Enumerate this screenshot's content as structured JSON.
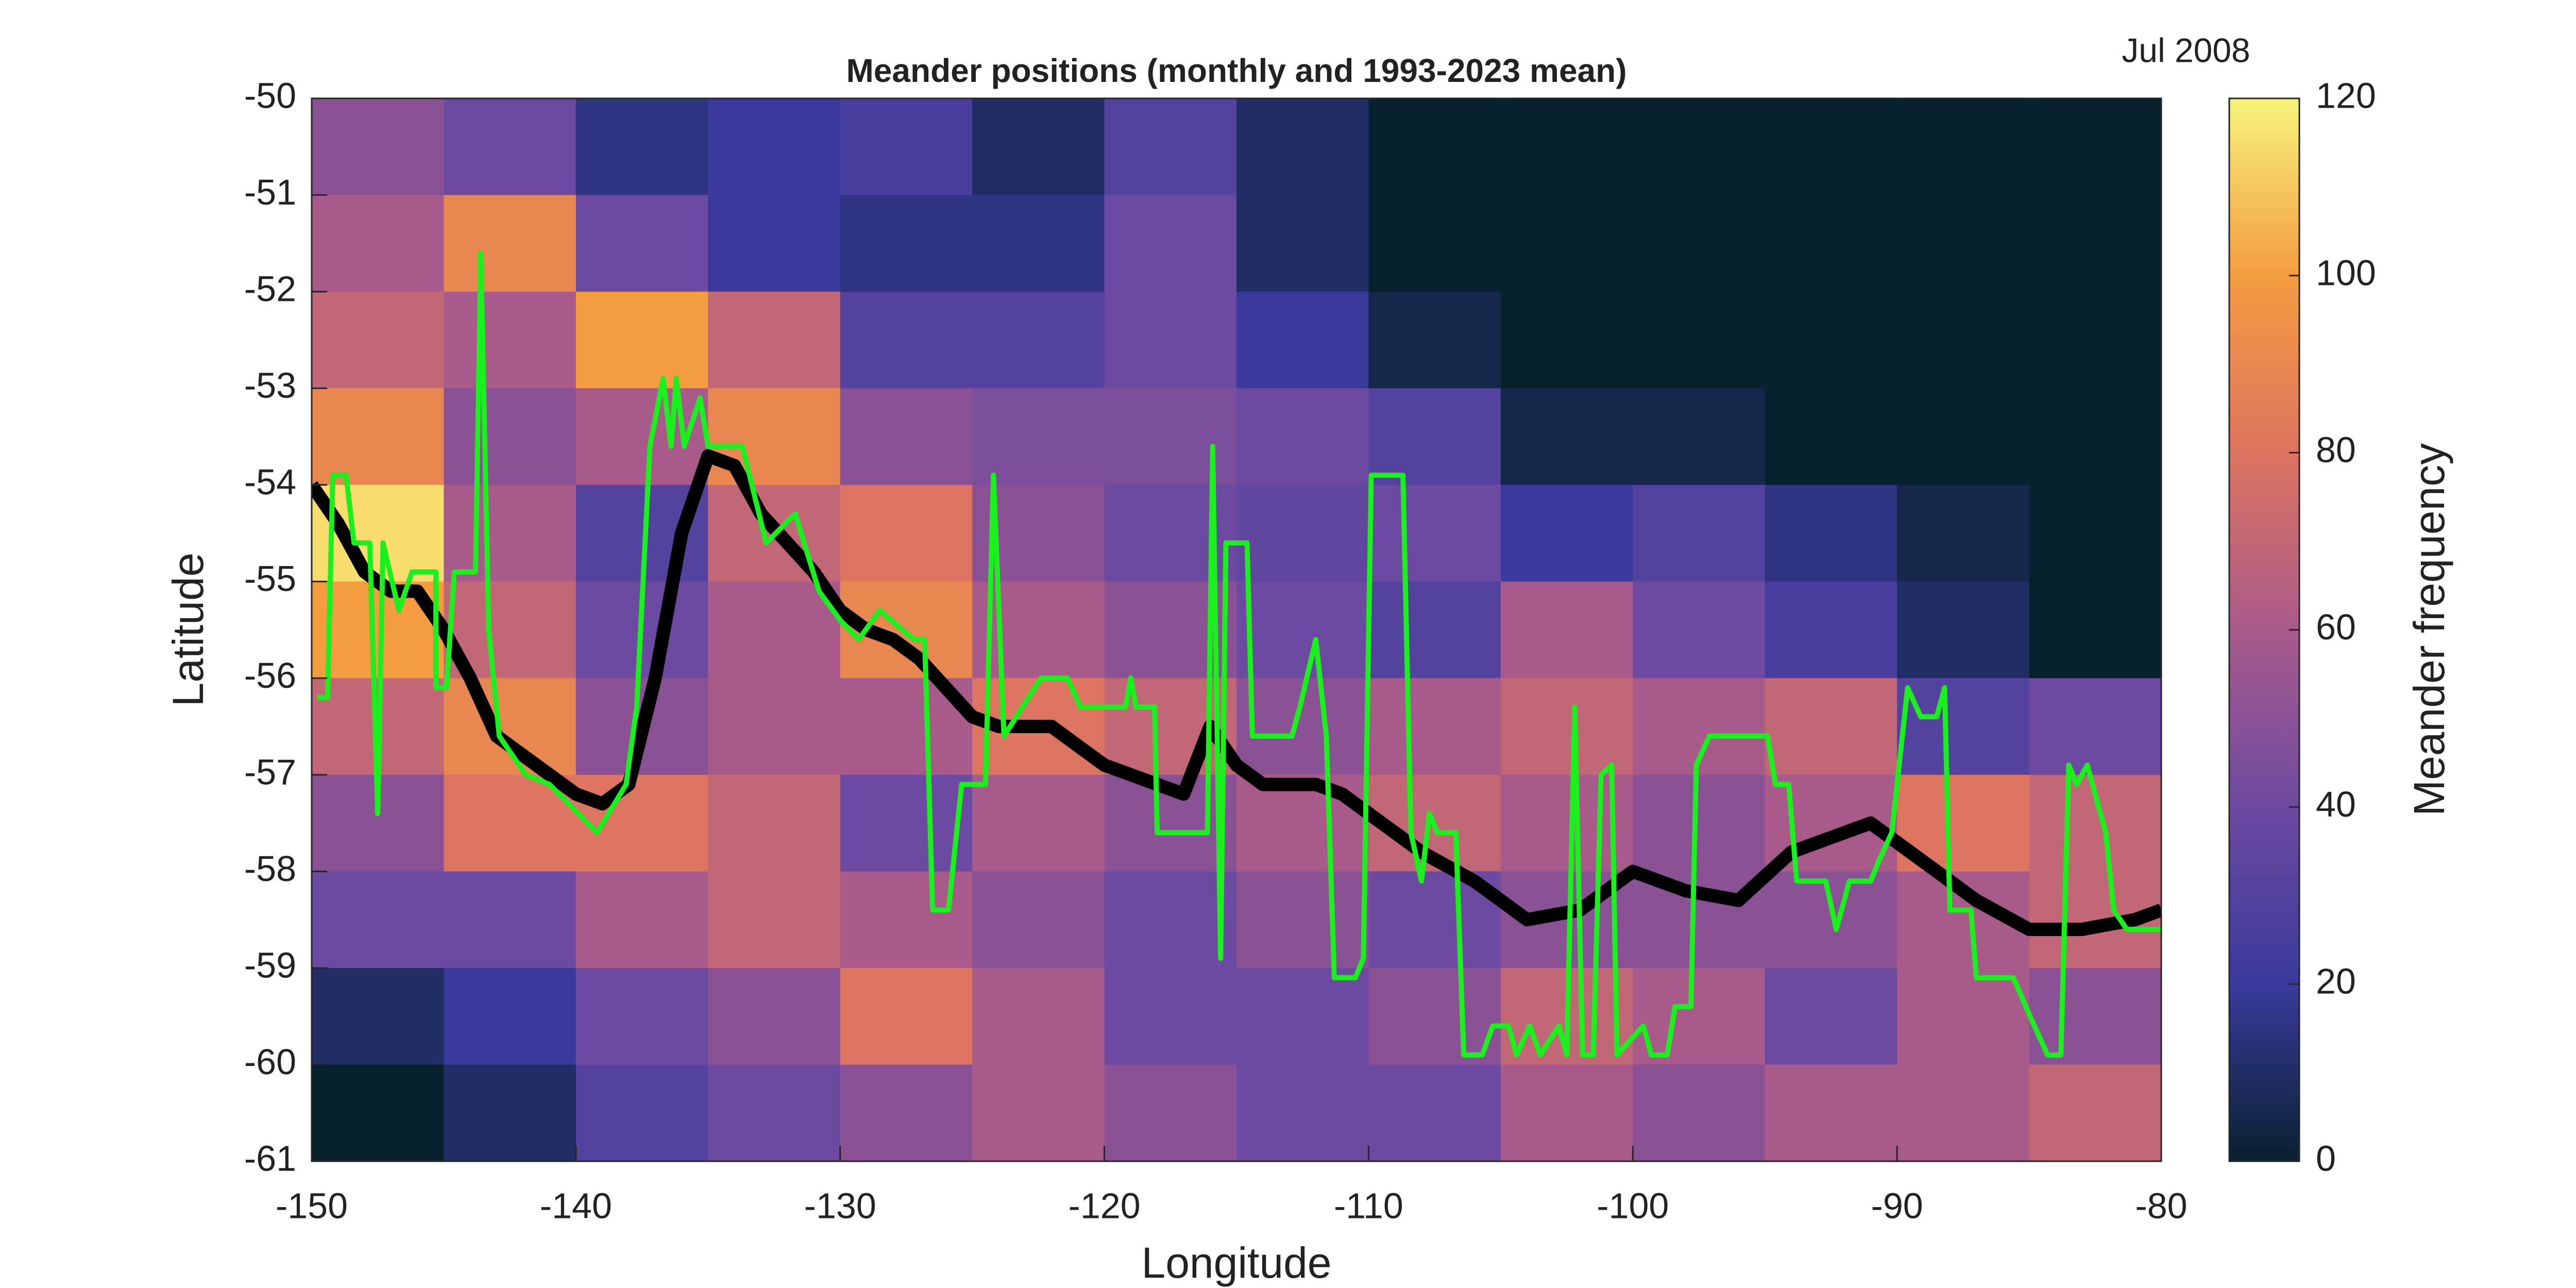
{
  "chart_data": {
    "type": "heatmap",
    "title": "Meander positions (monthly and 1993-2023 mean)",
    "annotation": "Jul 2008",
    "xlabel": "Longitude",
    "ylabel": "Latitude",
    "xlim": [
      -150,
      -80
    ],
    "ylim": [
      -61,
      -50
    ],
    "xticks": [
      -150,
      -140,
      -130,
      -120,
      -110,
      -100,
      -90,
      -80
    ],
    "yticks": [
      -50,
      -51,
      -52,
      -53,
      -54,
      -55,
      -56,
      -57,
      -58,
      -59,
      -60,
      -61
    ],
    "x_edges": [
      -150,
      -145,
      -140,
      -135,
      -130,
      -125,
      -120,
      -115,
      -110,
      -105,
      -100,
      -95,
      -90,
      -85,
      -80
    ],
    "y_edges": [
      -50,
      -51,
      -52,
      -53,
      -54,
      -55,
      -56,
      -57,
      -58,
      -59,
      -60,
      -61
    ],
    "z": [
      [
        50,
        40,
        15,
        20,
        25,
        10,
        30,
        10,
        0,
        0,
        0,
        0,
        0,
        0
      ],
      [
        60,
        90,
        40,
        20,
        15,
        15,
        40,
        10,
        0,
        0,
        0,
        0,
        0,
        0
      ],
      [
        70,
        60,
        100,
        70,
        30,
        30,
        40,
        20,
        5,
        0,
        0,
        0,
        0,
        0
      ],
      [
        90,
        50,
        60,
        90,
        50,
        45,
        45,
        40,
        30,
        5,
        5,
        0,
        0,
        0
      ],
      [
        115,
        60,
        30,
        70,
        80,
        50,
        40,
        35,
        40,
        20,
        30,
        15,
        5,
        0
      ],
      [
        100,
        70,
        40,
        60,
        90,
        60,
        50,
        40,
        30,
        60,
        40,
        25,
        10,
        0
      ],
      [
        70,
        90,
        50,
        60,
        60,
        80,
        70,
        50,
        60,
        70,
        60,
        70,
        30,
        40
      ],
      [
        50,
        80,
        80,
        70,
        40,
        60,
        50,
        60,
        70,
        60,
        50,
        60,
        80,
        70
      ],
      [
        40,
        40,
        60,
        70,
        60,
        50,
        40,
        50,
        40,
        50,
        50,
        50,
        60,
        70
      ],
      [
        10,
        20,
        40,
        50,
        80,
        60,
        40,
        40,
        50,
        70,
        60,
        40,
        60,
        50
      ],
      [
        0,
        10,
        30,
        40,
        50,
        60,
        50,
        40,
        40,
        60,
        50,
        60,
        60,
        70
      ]
    ],
    "colormap": [
      "#08212f",
      "#3a3a9c",
      "#6c4aa0",
      "#a85a8a",
      "#dc7460",
      "#f49c40",
      "#f6f37c"
    ],
    "colorbar": {
      "label": "Meander frequency",
      "lim": [
        0,
        120
      ],
      "ticks": [
        0,
        20,
        40,
        60,
        80,
        100,
        120
      ]
    },
    "lines": [
      {
        "color": "#000000",
        "x": [
          -150,
          -149,
          -148,
          -147,
          -146,
          -145,
          -144,
          -143,
          -142,
          -141,
          -140,
          -139,
          -138,
          -137,
          -136,
          -135,
          -134,
          -133,
          -132,
          -131,
          -130,
          -129,
          -128,
          -127,
          -126,
          -125,
          -124,
          -123,
          -122,
          -121,
          -120,
          -119,
          -118,
          -117,
          -116,
          -115,
          -114,
          -113,
          -112,
          -111,
          -110,
          -108,
          -106,
          -104,
          -102,
          -100,
          -98,
          -96,
          -94,
          -92,
          -91,
          -89,
          -87,
          -85,
          -83,
          -81,
          -80
        ],
        "values": [
          -54,
          -54.4,
          -54.9,
          -55.1,
          -55.1,
          -55.5,
          -56.0,
          -56.6,
          -56.8,
          -57.0,
          -57.2,
          -57.3,
          -57.1,
          -56.0,
          -54.5,
          -53.7,
          -53.8,
          -54.3,
          -54.6,
          -54.9,
          -55.3,
          -55.5,
          -55.6,
          -55.8,
          -56.1,
          -56.4,
          -56.5,
          -56.5,
          -56.5,
          -56.7,
          -56.9,
          -57.0,
          -57.1,
          -57.2,
          -56.5,
          -56.9,
          -57.1,
          -57.1,
          -57.1,
          -57.2,
          -57.4,
          -57.8,
          -58.1,
          -58.5,
          -58.4,
          -58.0,
          -58.2,
          -58.3,
          -57.8,
          -57.6,
          -57.5,
          -57.9,
          -58.3,
          -58.6,
          -58.6,
          -58.5,
          -58.4
        ]
      },
      {
        "color": "#19f01e",
        "x": [
          -149.8,
          -149.4,
          -149.2,
          -148.7,
          -148.4,
          -147.8,
          -147.5,
          -147.3,
          -146.7,
          -146.2,
          -145.3,
          -145.3,
          -144.9,
          -144.6,
          -143.8,
          -143.6,
          -143.3,
          -142.9,
          -141.9,
          -141,
          -139.2,
          -138.1,
          -137.7,
          -137.2,
          -136.7,
          -136.4,
          -136.2,
          -135.9,
          -135.3,
          -135,
          -133.7,
          -132.8,
          -131.7,
          -130.8,
          -130,
          -129.3,
          -128.5,
          -127.2,
          -126.8,
          -126.5,
          -125.9,
          -125.4,
          -124.5,
          -124.2,
          -123.8,
          -123.1,
          -122.4,
          -121.4,
          -120.9,
          -119.2,
          -119,
          -118.8,
          -118.1,
          -118,
          -116.1,
          -115.9,
          -115.6,
          -115.4,
          -114.6,
          -114.4,
          -112.9,
          -112.6,
          -112,
          -111.6,
          -111.3,
          -110.5,
          -110.2,
          -109.9,
          -108.7,
          -108.4,
          -108,
          -107.7,
          -107.4,
          -106.7,
          -106.4,
          -105.7,
          -105.3,
          -104.7,
          -104.4,
          -103.9,
          -103.5,
          -102.8,
          -102.5,
          -102.2,
          -101.9,
          -101.5,
          -101.2,
          -100.8,
          -100.6,
          -99.6,
          -99.3,
          -98.7,
          -98.4,
          -97.8,
          -97.6,
          -97.1,
          -94.9,
          -94.6,
          -94.1,
          -93.8,
          -92.7,
          -92.3,
          -91.8,
          -91,
          -90.7,
          -90.2,
          -89.6,
          -89.1,
          -88.5,
          -88.2,
          -88,
          -87.2,
          -87,
          -85.6,
          -84.8,
          -84.3,
          -83.8,
          -83.5,
          -83.2,
          -82.8,
          -82.1,
          -81.8,
          -81.3,
          -80
        ],
        "values": [
          -56.2,
          -56.2,
          -53.9,
          -53.9,
          -54.6,
          -54.6,
          -57.4,
          -54.6,
          -55.3,
          -54.9,
          -54.9,
          -56.1,
          -56.1,
          -54.9,
          -54.9,
          -51.6,
          -55.5,
          -56.6,
          -57.0,
          -57.1,
          -57.6,
          -57.1,
          -56.3,
          -53.6,
          -52.9,
          -53.6,
          -52.9,
          -53.6,
          -53.1,
          -53.6,
          -53.6,
          -54.6,
          -54.3,
          -55.1,
          -55.4,
          -55.6,
          -55.3,
          -55.6,
          -55.6,
          -58.4,
          -58.4,
          -57.1,
          -57.1,
          -53.9,
          -56.6,
          -56.3,
          -56.0,
          -56.0,
          -56.3,
          -56.3,
          -56.0,
          -56.3,
          -56.3,
          -57.6,
          -57.6,
          -53.6,
          -58.9,
          -54.6,
          -54.6,
          -56.6,
          -56.6,
          -56.3,
          -55.6,
          -56.6,
          -59.1,
          -59.1,
          -58.9,
          -53.9,
          -53.9,
          -57.6,
          -58.1,
          -57.4,
          -57.6,
          -57.6,
          -59.9,
          -59.9,
          -59.6,
          -59.6,
          -59.9,
          -59.6,
          -59.9,
          -59.6,
          -59.9,
          -56.3,
          -59.9,
          -59.9,
          -57.0,
          -56.9,
          -59.9,
          -59.6,
          -59.9,
          -59.9,
          -59.4,
          -59.4,
          -56.9,
          -56.6,
          -56.6,
          -57.1,
          -57.1,
          -58.1,
          -58.1,
          -58.6,
          -58.1,
          -58.1,
          -57.9,
          -57.6,
          -56.1,
          -56.4,
          -56.4,
          -56.1,
          -58.4,
          -58.4,
          -59.1,
          -59.1,
          -59.6,
          -59.9,
          -59.9,
          -56.9,
          -57.1,
          -56.9,
          -57.6,
          -58.4,
          -58.6,
          -58.6
        ]
      }
    ]
  }
}
